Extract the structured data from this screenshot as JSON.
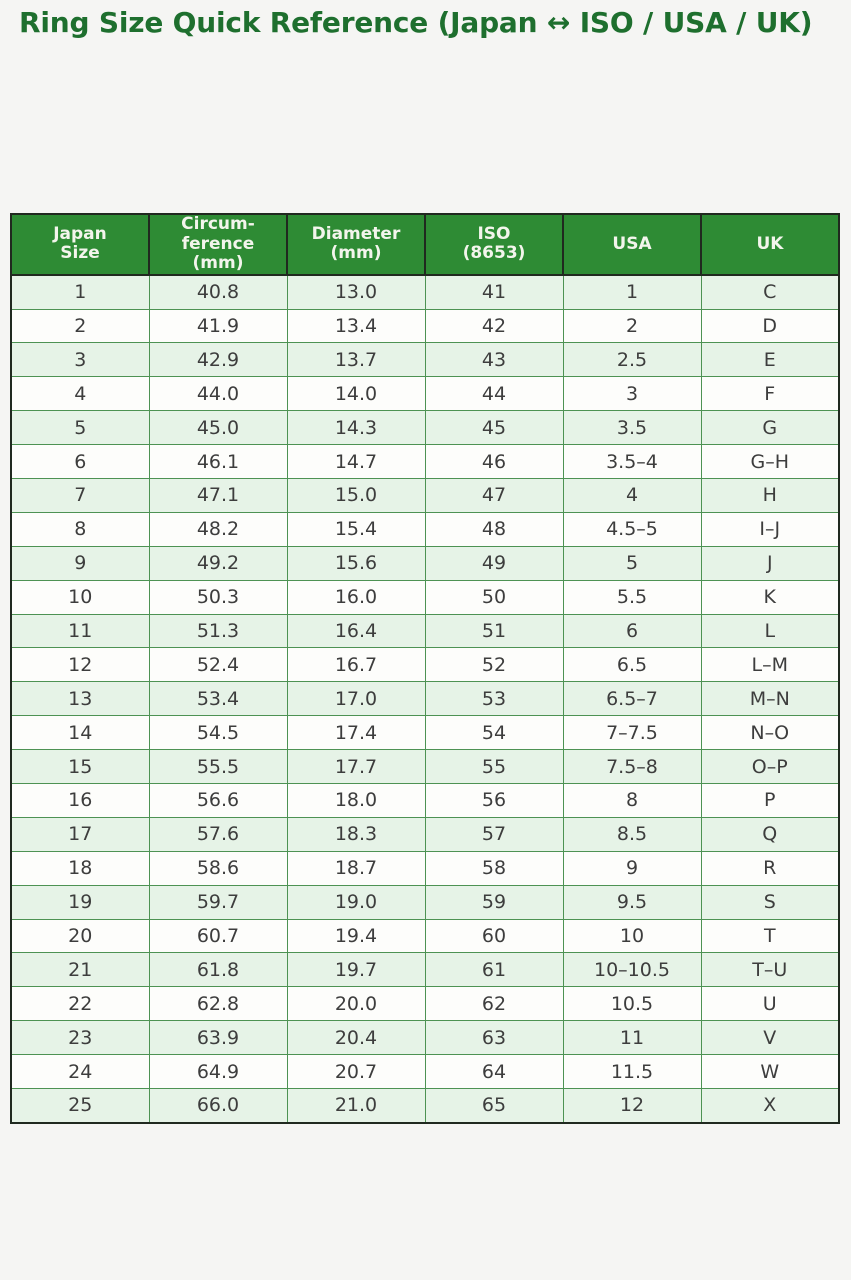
{
  "page": {
    "title": "Ring Size Quick Reference (Japan ↔ ISO / USA / UK)"
  },
  "colors": {
    "title_green": "#1e6f2e",
    "header_bg": "#2e8b34",
    "header_text": "#f3f5ec",
    "row_alt_bg": "#e6f3e7",
    "row_bg": "#fdfdfb",
    "grid_line": "#4d9253",
    "outer_border": "#20291f",
    "cell_text": "#3d3d3d",
    "page_bg": "#f5f5f3"
  },
  "table": {
    "display_headers": [
      "Japan\nSize",
      "Circum-\nference\n(mm)",
      "Diameter\n(mm)",
      "ISO\n(8653)",
      "USA",
      "UK"
    ]
  },
  "chart_data": {
    "type": "table",
    "title": "Ring Size Quick Reference (Japan ↔ ISO / USA / UK)",
    "columns": [
      "Japan Size",
      "Circumference (mm)",
      "Diameter (mm)",
      "ISO (8653)",
      "USA",
      "UK"
    ],
    "rows": [
      [
        "1",
        "40.8",
        "13.0",
        "41",
        "1",
        "C"
      ],
      [
        "2",
        "41.9",
        "13.4",
        "42",
        "2",
        "D"
      ],
      [
        "3",
        "42.9",
        "13.7",
        "43",
        "2.5",
        "E"
      ],
      [
        "4",
        "44.0",
        "14.0",
        "44",
        "3",
        "F"
      ],
      [
        "5",
        "45.0",
        "14.3",
        "45",
        "3.5",
        "G"
      ],
      [
        "6",
        "46.1",
        "14.7",
        "46",
        "3.5–4",
        "G–H"
      ],
      [
        "7",
        "47.1",
        "15.0",
        "47",
        "4",
        "H"
      ],
      [
        "8",
        "48.2",
        "15.4",
        "48",
        "4.5–5",
        "I–J"
      ],
      [
        "9",
        "49.2",
        "15.6",
        "49",
        "5",
        "J"
      ],
      [
        "10",
        "50.3",
        "16.0",
        "50",
        "5.5",
        "K"
      ],
      [
        "11",
        "51.3",
        "16.4",
        "51",
        "6",
        "L"
      ],
      [
        "12",
        "52.4",
        "16.7",
        "52",
        "6.5",
        "L–M"
      ],
      [
        "13",
        "53.4",
        "17.0",
        "53",
        "6.5–7",
        "M–N"
      ],
      [
        "14",
        "54.5",
        "17.4",
        "54",
        "7–7.5",
        "N–O"
      ],
      [
        "15",
        "55.5",
        "17.7",
        "55",
        "7.5–8",
        "O–P"
      ],
      [
        "16",
        "56.6",
        "18.0",
        "56",
        "8",
        "P"
      ],
      [
        "17",
        "57.6",
        "18.3",
        "57",
        "8.5",
        "Q"
      ],
      [
        "18",
        "58.6",
        "18.7",
        "58",
        "9",
        "R"
      ],
      [
        "19",
        "59.7",
        "19.0",
        "59",
        "9.5",
        "S"
      ],
      [
        "20",
        "60.7",
        "19.4",
        "60",
        "10",
        "T"
      ],
      [
        "21",
        "61.8",
        "19.7",
        "61",
        "10–10.5",
        "T–U"
      ],
      [
        "22",
        "62.8",
        "20.0",
        "62",
        "10.5",
        "U"
      ],
      [
        "23",
        "63.9",
        "20.4",
        "63",
        "11",
        "V"
      ],
      [
        "24",
        "64.9",
        "20.7",
        "64",
        "11.5",
        "W"
      ],
      [
        "25",
        "66.0",
        "21.0",
        "65",
        "12",
        "X"
      ]
    ],
    "layout": {
      "grid": true,
      "striped_rows": true,
      "header_position": "top"
    }
  }
}
